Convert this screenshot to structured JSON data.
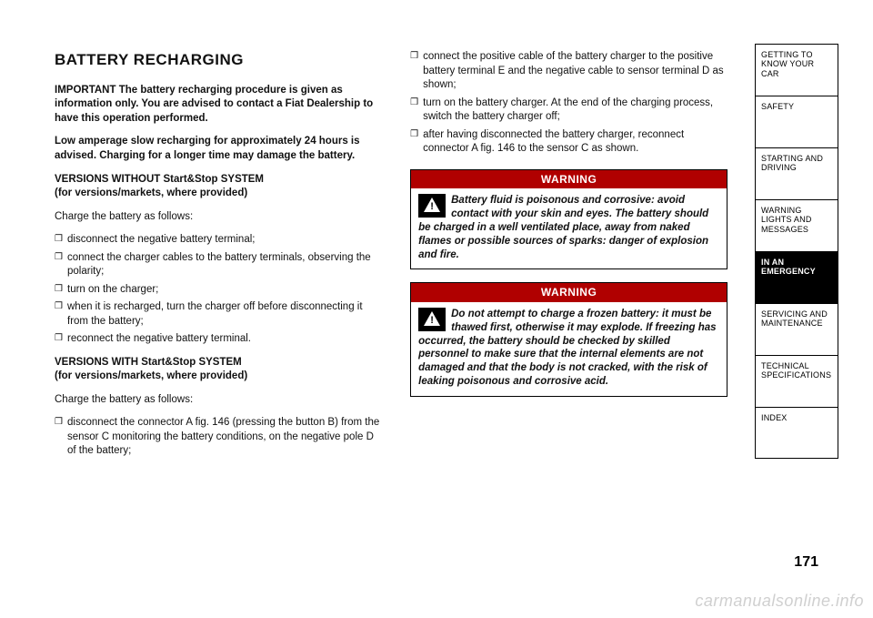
{
  "title": "BATTERY RECHARGING",
  "left": {
    "important": "IMPORTANT The battery recharging procedure is given as information only. You are advised to contact a Fiat Dealership to have this operation performed.",
    "lowAmp": "Low amperage slow recharging for approximately 24 hours is advised. Charging for a longer time may damage the battery.",
    "withoutHead": "VERSIONS WITHOUT Start&Stop SYSTEM",
    "withoutSub": "(for versions/markets, where provided)",
    "chargeIntro": "Charge the battery as follows:",
    "withoutList": [
      "disconnect the negative battery terminal;",
      "connect the charger cables to the battery terminals, observing the polarity;",
      "turn on the charger;",
      "when it is recharged, turn the charger off before disconnecting it from the battery;",
      "reconnect the negative battery terminal."
    ],
    "withHead": "VERSIONS WITH Start&Stop SYSTEM",
    "withSub": "(for versions/markets, where provided)",
    "withList": [
      "disconnect the connector A fig. 146 (pressing the button B) from the sensor C monitoring the battery conditions, on the negative pole D of the battery;"
    ]
  },
  "right": {
    "contList": [
      "connect the positive cable of the battery charger to the positive battery terminal E and the negative cable to sensor terminal D as shown;",
      "turn on the battery charger. At the end of the charging process, switch the battery charger off;",
      "after having disconnected the battery charger, reconnect connector A fig. 146 to the sensor C as shown."
    ],
    "warnLabel": "WARNING",
    "warn1": "Battery fluid is poisonous and corrosive: avoid contact with your skin and eyes. The battery should be charged in a well ventilated place, away from naked flames or possible sources of sparks: danger of explosion and fire.",
    "warn2": "Do not attempt to charge a frozen battery: it must be thawed first, otherwise it may explode. If freezing has occurred, the battery should be checked by skilled personnel to make sure that the internal elements are not damaged and that the body is not cracked, with the risk of leaking poisonous and corrosive acid."
  },
  "tabs": [
    "GETTING TO KNOW YOUR CAR",
    "SAFETY",
    "STARTING AND DRIVING",
    "WARNING LIGHTS AND MESSAGES",
    "IN AN EMERGENCY",
    "SERVICING AND MAINTENANCE",
    "TECHNICAL SPECIFICATIONS",
    "INDEX"
  ],
  "activeTab": 4,
  "pageNumber": "171",
  "watermark": "carmanualsonline.info",
  "colors": {
    "warnHeader": "#b00000",
    "text": "#111111",
    "watermark": "#d0d0d0"
  }
}
